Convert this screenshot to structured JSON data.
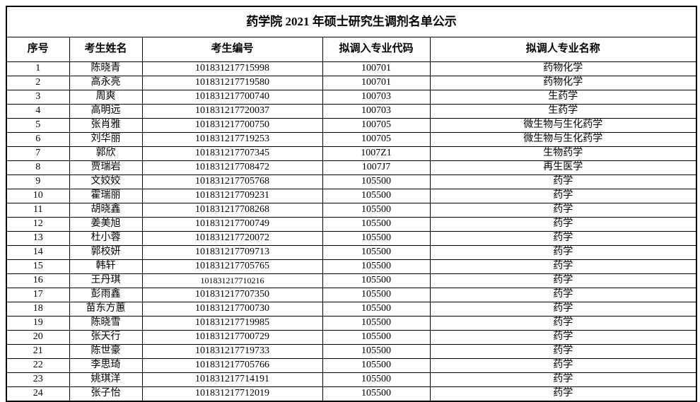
{
  "title": "药学院 2021 年硕士研究生调剂名单公示",
  "columns": [
    "序号",
    "考生姓名",
    "考生编号",
    "拟调入专业代码",
    "拟调人专业名称"
  ],
  "rows": [
    [
      "1",
      "陈晓青",
      "101831217715998",
      "100701",
      "药物化学"
    ],
    [
      "2",
      "高永亮",
      "101831217719580",
      "100701",
      "药物化学"
    ],
    [
      "3",
      "周爽",
      "101831217700740",
      "100703",
      "生药学"
    ],
    [
      "4",
      "高明远",
      "101831217720037",
      "100703",
      "生药学"
    ],
    [
      "5",
      "张肖雅",
      "101831217700750",
      "100705",
      "微生物与生化药学"
    ],
    [
      "6",
      "刘华丽",
      "101831217719253",
      "100705",
      "微生物与生化药学"
    ],
    [
      "7",
      "郭欣",
      "101831217707345",
      "1007Z1",
      "生物药学"
    ],
    [
      "8",
      "贾瑞岩",
      "101831217708472",
      "1007J7",
      "再生医学"
    ],
    [
      "9",
      "文姣姣",
      "101831217705768",
      "105500",
      "药学"
    ],
    [
      "10",
      "霍瑞丽",
      "101831217709231",
      "105500",
      "药学"
    ],
    [
      "11",
      "胡晓鑫",
      "101831217708268",
      "105500",
      "药学"
    ],
    [
      "12",
      "姜美旭",
      "101831217700749",
      "105500",
      "药学"
    ],
    [
      "13",
      "杜小蓉",
      "101831217720072",
      "105500",
      "药学"
    ],
    [
      "14",
      "郭校妍",
      "101831217709713",
      "105500",
      "药学"
    ],
    [
      "15",
      "韩轩",
      "101831217705765",
      "105500",
      "药学"
    ],
    [
      "16",
      "王丹琪",
      "101831217710216",
      "105500",
      "药学"
    ],
    [
      "17",
      "彭雨鑫",
      "101831217707350",
      "105500",
      "药学"
    ],
    [
      "18",
      "苗东方蕙",
      "101831217700730",
      "105500",
      "药学"
    ],
    [
      "19",
      "陈晓雪",
      "101831217719985",
      "105500",
      "药学"
    ],
    [
      "20",
      "张天行",
      "101831217700729",
      "105500",
      "药学"
    ],
    [
      "21",
      "陈世豪",
      "101831217719733",
      "105500",
      "药学"
    ],
    [
      "22",
      "李思琦",
      "101831217705766",
      "105500",
      "药学"
    ],
    [
      "23",
      "姚琪洋",
      "101831217714191",
      "105500",
      "药学"
    ],
    [
      "24",
      "张子怡",
      "101831217712019",
      "105500",
      "药学"
    ]
  ]
}
